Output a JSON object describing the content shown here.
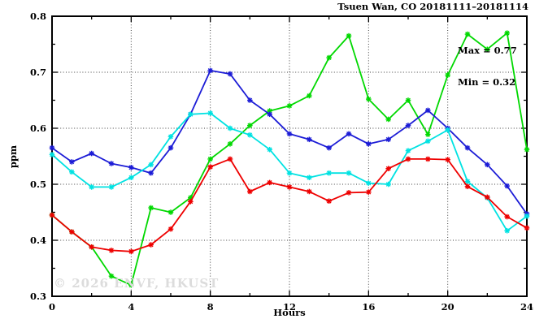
{
  "watermark": "© 2026 ENVF, HKUST",
  "chart_data": {
    "type": "line",
    "title": "Tsuen Wan, CO 20181111–20181114",
    "xlabel": "Hours",
    "ylabel": "ppm",
    "xlim": [
      0,
      24
    ],
    "ylim": [
      0.3,
      0.8
    ],
    "grid": true,
    "legend": "none",
    "annotations": {
      "max": "Max = 0.77",
      "min": "Min = 0.32"
    },
    "stats": {
      "max": 0.77,
      "min": 0.32
    },
    "x_major_ticks": [
      0,
      4,
      8,
      12,
      16,
      20,
      24
    ],
    "x_tick_labels": [
      "0",
      "4",
      "8",
      "12",
      "16",
      "20",
      "24"
    ],
    "x_minor_ticks": [
      2,
      6,
      10,
      14,
      18,
      22
    ],
    "y_major_ticks": [
      0.3,
      0.4,
      0.5,
      0.6,
      0.7,
      0.8
    ],
    "y_tick_labels": [
      "0.3",
      "0.4",
      "0.5",
      "0.6",
      "0.7",
      "0.8"
    ],
    "y_minor_ticks": [
      0.35,
      0.45,
      0.55,
      0.65,
      0.75
    ],
    "grid_x": [
      4,
      8,
      12,
      16,
      20
    ],
    "grid_y": [
      0.4,
      0.5,
      0.6,
      0.7
    ],
    "x": [
      0,
      1,
      2,
      3,
      4,
      5,
      6,
      7,
      8,
      9,
      10,
      11,
      12,
      13,
      14,
      15,
      16,
      17,
      18,
      19,
      20,
      21,
      22,
      23,
      24
    ],
    "series": [
      {
        "name": "green-line",
        "color": "#00d800",
        "values": [
          0.445,
          0.415,
          0.388,
          0.336,
          0.32,
          0.458,
          0.45,
          0.476,
          0.545,
          0.572,
          0.605,
          0.631,
          0.64,
          0.658,
          0.726,
          0.765,
          0.652,
          0.616,
          0.65,
          0.589,
          0.695,
          0.768,
          0.741,
          0.77,
          0.562
        ]
      },
      {
        "name": "blue-line",
        "color": "#1c1cd6",
        "values": [
          0.565,
          0.54,
          0.555,
          0.537,
          0.53,
          0.52,
          0.565,
          0.625,
          0.703,
          0.697,
          0.65,
          0.625,
          0.59,
          0.58,
          0.565,
          0.59,
          0.572,
          0.58,
          0.605,
          0.632,
          0.6,
          0.565,
          0.535,
          0.497,
          0.447
        ]
      },
      {
        "name": "cyan-line",
        "color": "#00e2e2",
        "values": [
          0.553,
          0.522,
          0.495,
          0.495,
          0.512,
          0.535,
          0.585,
          0.625,
          0.627,
          0.6,
          0.588,
          0.562,
          0.52,
          0.512,
          0.52,
          0.52,
          0.502,
          0.5,
          0.56,
          0.577,
          0.597,
          0.505,
          0.476,
          0.417,
          0.443
        ]
      },
      {
        "name": "red-line",
        "color": "#ee0000",
        "values": [
          0.445,
          0.415,
          0.388,
          0.382,
          0.38,
          0.392,
          0.42,
          0.469,
          0.531,
          0.545,
          0.487,
          0.503,
          0.495,
          0.487,
          0.47,
          0.485,
          0.486,
          0.528,
          0.545,
          0.545,
          0.544,
          0.496,
          0.477,
          0.442,
          0.422
        ]
      }
    ]
  }
}
